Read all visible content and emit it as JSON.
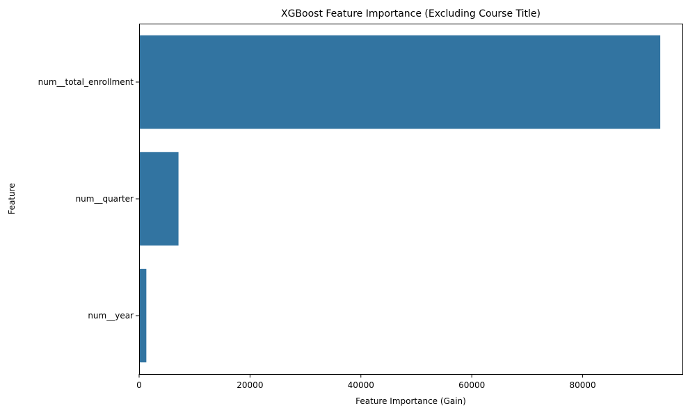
{
  "chart_data": {
    "type": "bar",
    "orientation": "horizontal",
    "title": "XGBoost Feature Importance (Excluding Course Title)",
    "xlabel": "Feature Importance (Gain)",
    "ylabel": "Feature",
    "categories": [
      "num__total_enrollment",
      "num__quarter",
      "num__year"
    ],
    "values": [
      94000,
      7100,
      1300
    ],
    "xlim": [
      0,
      98000
    ],
    "xticks": [
      0,
      20000,
      40000,
      60000,
      80000
    ],
    "grid": false,
    "legend": "none",
    "bar_color": "#3274a1"
  }
}
